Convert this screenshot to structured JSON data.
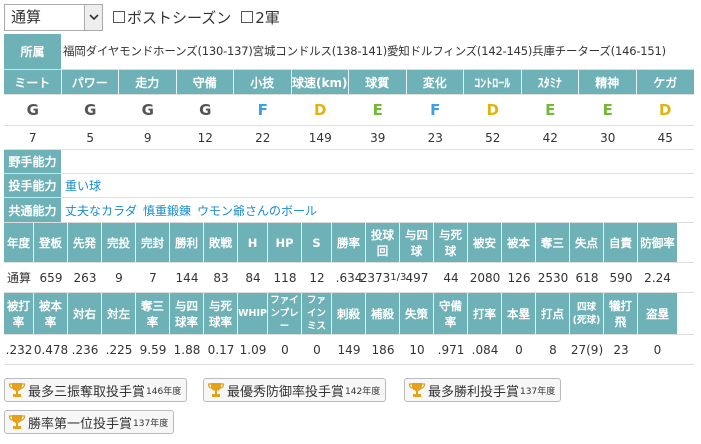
{
  "filters": {
    "select_value": "通算",
    "postseason_label": "ポストシーズン",
    "second_team_label": "2軍"
  },
  "affiliation": {
    "label": "所属",
    "teams": "福岡ダイヤモンドホーンズ(130-137)宮城コンドルス(138-141)愛知ドルフィンズ(142-145)兵庫チーターズ(146-151)"
  },
  "abilities": {
    "headers": [
      "ミート",
      "パワー",
      "走力",
      "守備",
      "小技",
      "球速(km)",
      "球質",
      "変化",
      "ｺﾝﾄﾛｰﾙ",
      "ｽﾀﾐﾅ",
      "精神",
      "ケガ"
    ],
    "grades": [
      "G",
      "G",
      "G",
      "G",
      "F",
      "D",
      "E",
      "F",
      "D",
      "E",
      "E",
      "D"
    ],
    "values": [
      "7",
      "5",
      "9",
      "12",
      "22",
      "149",
      "39",
      "23",
      "52",
      "42",
      "30",
      "45"
    ]
  },
  "skills": {
    "fielder_label": "野手能力",
    "fielder_items": "",
    "pitcher_label": "投手能力",
    "pitcher_items": "重い球",
    "common_label": "共通能力",
    "common_items": [
      "丈夫なカラダ",
      "慎重鍛錬",
      "ウモン爺さんのボール"
    ]
  },
  "pitching1": {
    "headers": [
      "年度",
      "登板",
      "先発",
      "完投",
      "完封",
      "勝利",
      "敗戦",
      "H",
      "HP",
      "S",
      "勝率",
      "投球回",
      "与四球",
      "与死球",
      "被安",
      "被本",
      "奪三",
      "失点",
      "自責",
      "防御率"
    ],
    "values": [
      "通算",
      "659",
      "263",
      "9",
      "7",
      "144",
      "83",
      "84",
      "118",
      "12",
      ".634",
      "2373",
      "497",
      "44",
      "2080",
      "126",
      "2530",
      "618",
      "590",
      "2.24"
    ],
    "ip_fraction": "1/3"
  },
  "pitching2": {
    "headers": [
      "被打率",
      "被本率",
      "対右",
      "対左",
      "奪三率",
      "与四球率",
      "与死球率",
      "WHIP",
      "ファインプレー",
      "ファインミス",
      "刺殺",
      "補殺",
      "失策",
      "守備率",
      "打率",
      "本塁",
      "打点",
      "四球(死球)",
      "犠打飛",
      "盗塁"
    ],
    "values": [
      ".232",
      "0.478",
      ".236",
      ".225",
      "9.59",
      "1.88",
      "0.17",
      "1.09",
      "0",
      "0",
      "149",
      "186",
      "10",
      ".971",
      ".084",
      "0",
      "8",
      "27(9)",
      "23",
      "0"
    ]
  },
  "awards": [
    {
      "title": "最多三振奪取投手賞",
      "year": "146年度"
    },
    {
      "title": "最優秀防御率投手賞",
      "year": "142年度"
    },
    {
      "title": "最多勝利投手賞",
      "year": "137年度"
    },
    {
      "title": "勝率第一位投手賞",
      "year": "137年度"
    }
  ],
  "colors": {
    "header_bg": "#6eb1b7",
    "link": "#1a8ccf",
    "trophy": "#e3a21a"
  }
}
